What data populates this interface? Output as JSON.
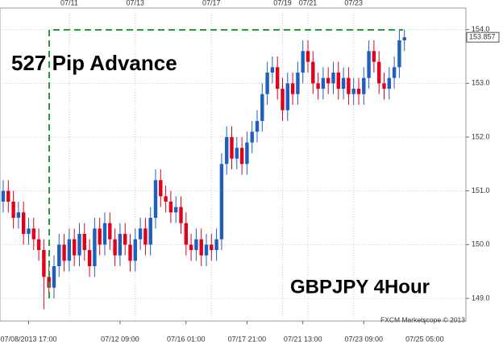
{
  "chart_data": {
    "type": "candlestick",
    "annotations": [
      "527 Pip Advance",
      "GBPJPY 4Hour",
      "FXCM Marketscope © 2013"
    ],
    "categories": [
      null,
      null,
      null,
      null,
      null,
      "07/08/2013 17:00",
      null,
      null,
      null,
      null,
      null,
      null,
      null,
      null,
      null,
      null,
      null,
      null,
      null,
      null,
      null,
      null,
      null,
      "07/12 09:00",
      null,
      null,
      null,
      null,
      null,
      null,
      null,
      null,
      null,
      null,
      null,
      null,
      "07/16 01:00",
      null,
      null,
      null,
      null,
      null,
      null,
      null,
      null,
      null,
      null,
      null,
      "07/17 21:00",
      null,
      null,
      null,
      null,
      null,
      null,
      null,
      null,
      null,
      null,
      "07/21 13:00",
      null,
      null,
      null,
      null,
      null,
      null,
      null,
      null,
      null,
      null,
      null,
      "07/23 09:00",
      null,
      null,
      null,
      null,
      null,
      null,
      null,
      null,
      null,
      null,
      null,
      "07/25 05:00",
      null,
      null
    ],
    "top_labels": [
      null,
      null,
      null,
      null,
      null,
      null,
      null,
      null,
      null,
      null,
      null,
      null,
      null,
      "07/11",
      null,
      null,
      null,
      null,
      null,
      null,
      null,
      null,
      null,
      null,
      null,
      null,
      "07/13",
      null,
      null,
      null,
      null,
      null,
      null,
      null,
      null,
      null,
      null,
      null,
      null,
      null,
      null,
      "07/17",
      null,
      null,
      null,
      null,
      null,
      null,
      null,
      null,
      null,
      null,
      null,
      null,
      null,
      "07/19",
      null,
      null,
      null,
      null,
      "07/21",
      null,
      null,
      null,
      null,
      null,
      null,
      null,
      null,
      "07/23",
      null,
      null,
      null,
      null,
      null,
      null,
      null,
      null,
      null,
      null,
      null,
      null,
      null,
      null,
      null,
      null
    ],
    "open": [
      150.8,
      151.0,
      150.8,
      150.5,
      150.6,
      150.2,
      150.3,
      150.1,
      149.9,
      149.4,
      149.2,
      149.6,
      150.0,
      149.7,
      150.1,
      149.8,
      150.2,
      149.9,
      149.6,
      150.3,
      150.0,
      150.4,
      150.1,
      149.8,
      150.2,
      150.0,
      149.7,
      150.1,
      150.3,
      150.0,
      150.5,
      151.2,
      150.9,
      150.8,
      150.6,
      150.7,
      150.4,
      150.0,
      149.9,
      150.1,
      149.8,
      150.0,
      149.9,
      150.1,
      151.5,
      152.0,
      151.6,
      151.8,
      151.5,
      151.9,
      152.1,
      152.3,
      152.8,
      153.2,
      153.3,
      152.9,
      152.5,
      153.0,
      152.8,
      153.2,
      153.6,
      153.4,
      153.0,
      152.9,
      153.1,
      153.0,
      153.2,
      152.9,
      153.1,
      152.8,
      152.9,
      152.8,
      153.1,
      153.6,
      153.4,
      153.0,
      152.9,
      153.1,
      153.3,
      153.8,
      null,
      null,
      null,
      null,
      null,
      null
    ],
    "high": [
      151.2,
      151.2,
      151.0,
      150.8,
      150.8,
      150.5,
      150.5,
      150.3,
      150.1,
      149.6,
      149.8,
      150.2,
      150.2,
      150.3,
      150.3,
      150.4,
      150.4,
      150.1,
      150.5,
      150.5,
      150.6,
      150.6,
      150.3,
      150.4,
      150.4,
      150.2,
      150.3,
      150.5,
      150.5,
      150.7,
      151.4,
      151.4,
      151.1,
      151.0,
      150.9,
      150.9,
      150.6,
      150.2,
      150.3,
      150.3,
      150.2,
      150.2,
      150.3,
      151.7,
      152.2,
      152.2,
      152.0,
      152.0,
      152.1,
      152.3,
      152.5,
      153.0,
      153.4,
      153.5,
      153.5,
      153.1,
      153.2,
      153.2,
      153.4,
      153.8,
      153.8,
      153.6,
      153.2,
      153.3,
      153.3,
      153.4,
      153.4,
      153.3,
      153.3,
      153.1,
      153.1,
      153.3,
      153.8,
      153.8,
      153.6,
      153.2,
      153.3,
      153.5,
      154.0,
      154.0,
      null,
      null,
      null,
      null,
      null,
      null
    ],
    "low": [
      150.6,
      150.6,
      150.3,
      150.3,
      150.0,
      150.0,
      149.9,
      149.7,
      148.8,
      149.0,
      149.0,
      149.4,
      149.5,
      149.5,
      149.6,
      149.6,
      149.7,
      149.4,
      149.4,
      149.8,
      149.8,
      149.9,
      149.6,
      149.6,
      149.8,
      149.5,
      149.5,
      149.9,
      149.8,
      149.8,
      150.3,
      150.7,
      150.6,
      150.4,
      150.4,
      150.2,
      149.8,
      149.7,
      149.7,
      149.6,
      149.6,
      149.7,
      149.7,
      149.9,
      151.3,
      151.4,
      151.4,
      151.3,
      151.3,
      151.7,
      151.9,
      152.1,
      152.6,
      153.0,
      152.7,
      152.3,
      152.3,
      152.6,
      152.6,
      153.0,
      153.2,
      152.8,
      152.7,
      152.7,
      152.8,
      152.8,
      152.7,
      152.7,
      152.6,
      152.6,
      152.6,
      152.6,
      152.9,
      153.2,
      152.8,
      152.7,
      152.7,
      152.9,
      153.1,
      153.6,
      null,
      null,
      null,
      null,
      null,
      null
    ],
    "close": [
      151.0,
      150.8,
      150.5,
      150.6,
      150.2,
      150.3,
      150.1,
      149.9,
      149.4,
      149.2,
      149.6,
      150.0,
      149.7,
      150.1,
      149.8,
      150.2,
      149.9,
      149.6,
      150.3,
      150.0,
      150.4,
      150.1,
      149.8,
      150.2,
      150.0,
      149.7,
      150.1,
      150.3,
      150.0,
      150.5,
      151.2,
      150.9,
      150.8,
      150.6,
      150.7,
      150.4,
      150.0,
      149.9,
      150.1,
      149.8,
      150.0,
      149.9,
      150.1,
      151.5,
      152.0,
      151.6,
      151.8,
      151.5,
      151.9,
      152.1,
      152.3,
      152.8,
      153.2,
      153.3,
      152.9,
      152.5,
      153.0,
      152.8,
      153.2,
      153.6,
      153.4,
      153.0,
      152.9,
      153.1,
      153.0,
      153.2,
      152.9,
      153.1,
      152.8,
      152.9,
      152.8,
      153.1,
      153.6,
      153.4,
      153.0,
      152.9,
      153.1,
      153.3,
      153.8,
      153.857,
      null,
      null,
      null,
      null,
      null,
      null
    ],
    "up_color": "#1f5fbf",
    "down_color": "#e0001b",
    "ylim": [
      148.58,
      154.4
    ],
    "yticks": [
      {
        "value": 149,
        "label": "149.0"
      },
      {
        "value": 150,
        "label": "150.0"
      },
      {
        "value": 151,
        "label": "151.0"
      },
      {
        "value": 152,
        "label": "152.0"
      },
      {
        "value": 153,
        "label": "153.0"
      },
      {
        "value": 154,
        "label": "154.0"
      }
    ],
    "grid": true
  }
}
